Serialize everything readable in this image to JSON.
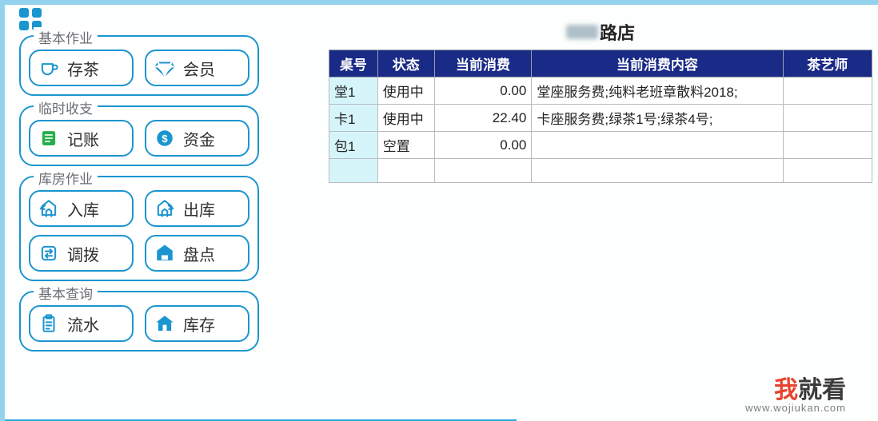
{
  "colors": {
    "border": "#1b95cf",
    "tableHeaderBg": "#1a2a87",
    "tableHeaderFg": "#ffffff",
    "cyanCell": "#d6f5fb",
    "watermarkRed": "#e7432e"
  },
  "sidebar": {
    "panels": [
      {
        "title": "基本作业",
        "rows": [
          [
            {
              "name": "store-tea-button",
              "icon": "cup",
              "label": "存茶"
            },
            {
              "name": "member-button",
              "icon": "diamond",
              "label": "会员"
            }
          ]
        ]
      },
      {
        "title": "临时收支",
        "rows": [
          [
            {
              "name": "bookkeeping-button",
              "icon": "ledger",
              "label": "记账"
            },
            {
              "name": "funds-button",
              "icon": "dollar",
              "label": "资金"
            }
          ]
        ]
      },
      {
        "title": "库房作业",
        "rows": [
          [
            {
              "name": "inbound-button",
              "icon": "in",
              "label": "入库"
            },
            {
              "name": "outbound-button",
              "icon": "out",
              "label": "出库"
            }
          ],
          [
            {
              "name": "transfer-button",
              "icon": "swap",
              "label": "调拨"
            },
            {
              "name": "stocktake-button",
              "icon": "hcheck",
              "label": "盘点"
            }
          ]
        ]
      },
      {
        "title": "基本查询",
        "rows": [
          [
            {
              "name": "journal-button",
              "icon": "clip",
              "label": "流水"
            },
            {
              "name": "inventory-button",
              "icon": "house",
              "label": "库存"
            }
          ]
        ]
      }
    ]
  },
  "main": {
    "storeSuffix": "路店",
    "table": {
      "columns": [
        "桌号",
        "状态",
        "当前消费",
        "当前消费内容",
        "茶艺师"
      ],
      "colWidths": [
        "60px",
        "70px",
        "120px",
        "310px",
        "110px"
      ],
      "rows": [
        {
          "table_no": "堂1",
          "status": "使用中",
          "amount": "0.00",
          "detail": "堂座服务费;纯料老班章散料2018;",
          "artist": ""
        },
        {
          "table_no": "卡1",
          "status": "使用中",
          "amount": "22.40",
          "detail": "卡座服务费;绿茶1号;绿茶4号;",
          "artist": ""
        },
        {
          "table_no": "包1",
          "status": "空置",
          "amount": "0.00",
          "detail": "",
          "artist": ""
        },
        {
          "table_no": "",
          "status": "",
          "amount": "",
          "detail": "",
          "artist": ""
        }
      ]
    }
  },
  "watermark": {
    "red": "我",
    "rest": "就看",
    "url": "www.wojiukan.com"
  }
}
